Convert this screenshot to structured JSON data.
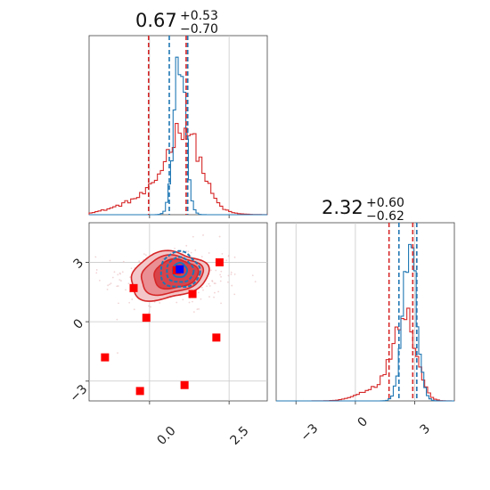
{
  "chart_data": {
    "type": "corner",
    "parameters": [
      {
        "title_value": "0.67",
        "title_upper": "+0.53",
        "title_lower": "−0.70",
        "range": [
          -1.9,
          3.7
        ],
        "ticks": [
          0.0,
          2.5
        ],
        "tick_labels": [
          "0.0",
          "2.5"
        ],
        "hist_red_quantiles": [
          -0.03,
          1.15,
          1.2
        ],
        "hist_blue_quantiles": [
          0.62,
          1.2
        ]
      },
      {
        "title_value": "2.32",
        "title_upper": "+0.60",
        "title_lower": "−0.62",
        "range": [
          -4.0,
          5.0
        ],
        "ticks": [
          -3,
          0,
          3
        ],
        "tick_labels": [
          "−3",
          "0",
          "3"
        ],
        "hist_red_quantiles": [
          1.7,
          2.9,
          3.1
        ],
        "hist_blue_quantiles": [
          2.2,
          3.1
        ]
      }
    ],
    "series": [
      {
        "color": "#d62728"
      },
      {
        "color": "#1f77b4"
      }
    ],
    "scatter_points_red": [
      [
        -0.5,
        1.7
      ],
      [
        -0.1,
        0.2
      ],
      [
        1.35,
        1.4
      ],
      [
        2.2,
        3.0
      ],
      [
        2.1,
        -0.8
      ],
      [
        -1.4,
        -1.8
      ],
      [
        -0.3,
        -3.5
      ],
      [
        1.1,
        -3.2
      ],
      [
        0.85,
        2.6
      ]
    ],
    "truth_point_blue": [
      0.95,
      2.65
    ],
    "grid": true
  }
}
